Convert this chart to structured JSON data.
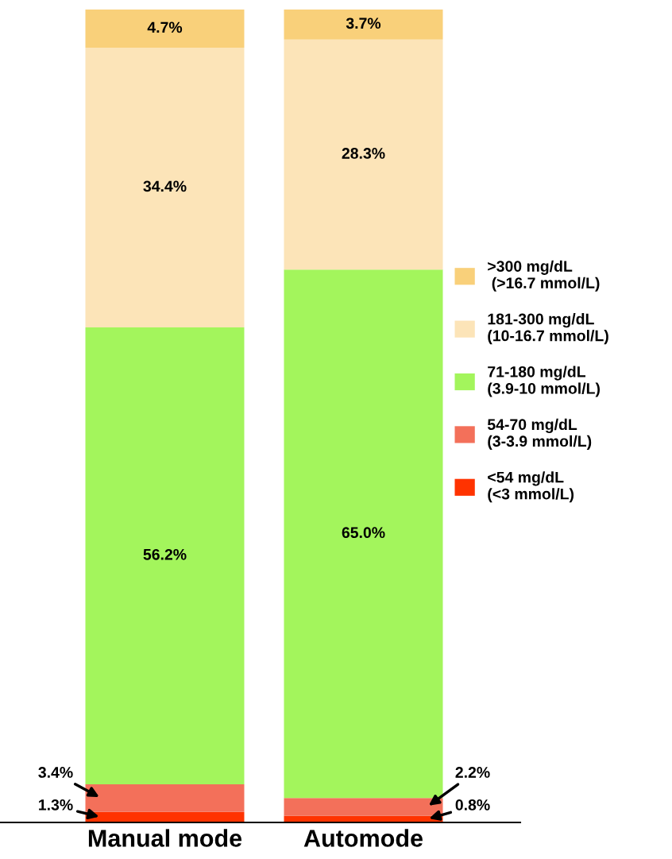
{
  "chart_data": {
    "type": "bar",
    "stacked": true,
    "categories": [
      "Manual mode",
      "Automode"
    ],
    "series": [
      {
        "name": "<54 mg/dL\n(<3 mmol/L)",
        "color": "#ff3300",
        "values": [
          1.3,
          0.8
        ],
        "value_labels": [
          "1.3%",
          "0.8%"
        ]
      },
      {
        "name": "54-70 mg/dL\n(3-3.9 mmol/L)",
        "color": "#f3705a",
        "values": [
          3.4,
          2.2
        ],
        "value_labels": [
          "3.4%",
          "2.2%"
        ]
      },
      {
        "name": "71-180 mg/dL\n(3.9-10 mmol/L)",
        "color": "#a3f55c",
        "values": [
          56.2,
          65.0
        ],
        "value_labels": [
          "56.2%",
          "65.0%"
        ]
      },
      {
        "name": "181-300 mg/dL\n(10-16.7 mmol/L)",
        "color": "#fce4b8",
        "values": [
          34.4,
          28.3
        ],
        "value_labels": [
          "34.4%",
          "28.3%"
        ]
      },
      {
        "name": ">300 mg/dL\n (>16.7 mmol/L)",
        "color": "#f9d07a",
        "values": [
          4.7,
          3.7
        ],
        "value_labels": [
          "4.7%",
          "3.7%"
        ]
      }
    ],
    "legend": "right",
    "tick_labels": "x",
    "grid": false
  }
}
